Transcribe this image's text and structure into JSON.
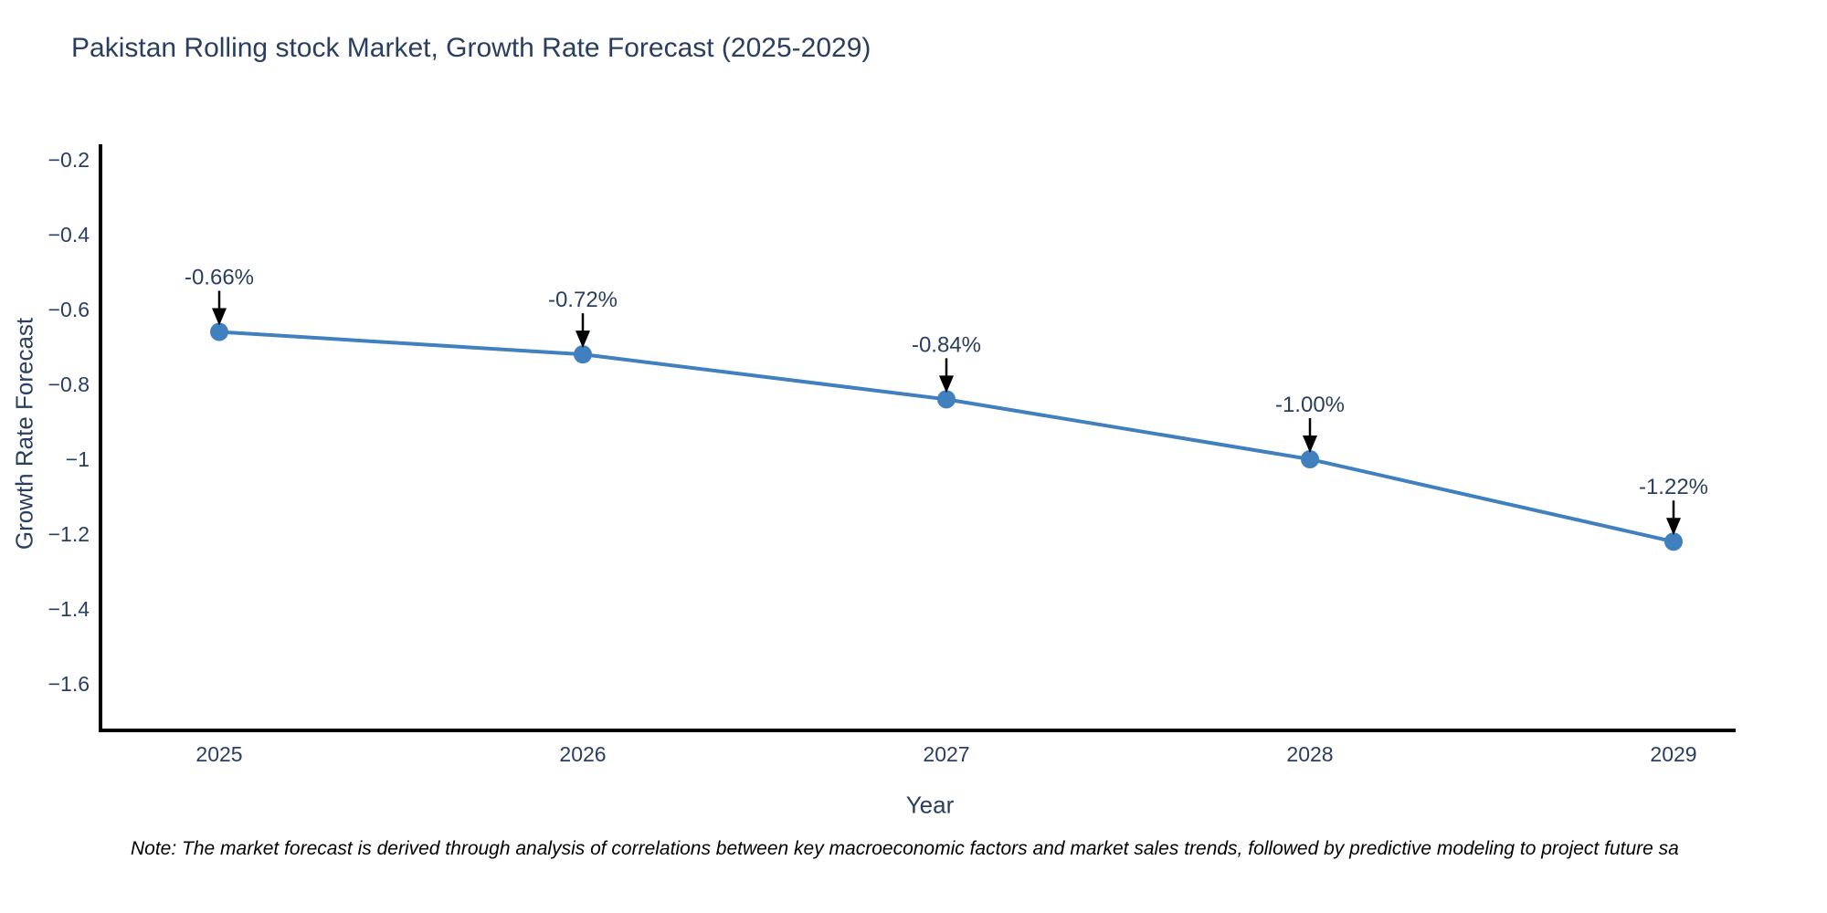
{
  "note": "Note: The market forecast is derived through analysis of correlations between key macroeconomic factors and market sales trends, followed by predictive modeling to project future sa",
  "chart_data": {
    "type": "line",
    "title": "Pakistan Rolling stock Market, Growth Rate Forecast (2025-2029)",
    "xlabel": "Year",
    "ylabel": "Growth Rate Forecast",
    "categories": [
      "2025",
      "2026",
      "2027",
      "2028",
      "2029"
    ],
    "values": [
      -0.66,
      -0.72,
      -0.84,
      -1.0,
      -1.22
    ],
    "data_labels": [
      "-0.66%",
      "-0.72%",
      "-0.84%",
      "-1.00%",
      "-1.22%"
    ],
    "yticks": [
      -0.2,
      -0.4,
      -0.6,
      -0.8,
      -1,
      -1.2,
      -1.4,
      -1.6
    ],
    "ytick_labels": [
      "−0.2",
      "−0.4",
      "−0.6",
      "−0.8",
      "−1",
      "−1.2",
      "−1.4",
      "−1.6"
    ],
    "ylim": [
      -1.724,
      -0.159
    ],
    "grid": false,
    "legend": "none",
    "line_color": "#4180bf",
    "marker_color": "#4180bf",
    "axis_color": "#000000",
    "text_color": "#2a3f5f",
    "annotation_color": "#2a3f5f",
    "arrow_color": "#000000"
  }
}
